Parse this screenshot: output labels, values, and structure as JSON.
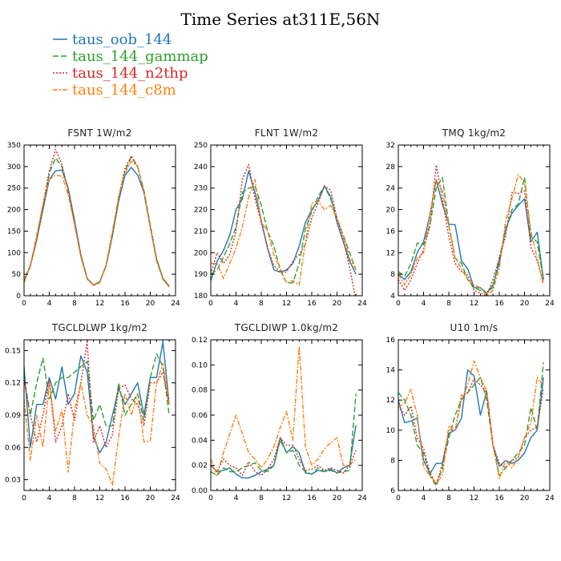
{
  "figure": {
    "title": "Time Series at311E,56N"
  },
  "legend": [
    {
      "name": "taus_oob_144",
      "color": "#1f77b4",
      "dash": ""
    },
    {
      "name": "taus_144_gammap",
      "color": "#2ca02c",
      "dash": "7,3"
    },
    {
      "name": "taus_144_n2thp",
      "color": "#d62728",
      "dash": "2,2"
    },
    {
      "name": "taus_144_c8m",
      "color": "#ff7f0e",
      "dash": "6,2,2,2"
    }
  ],
  "chart_data": [
    {
      "type": "line",
      "title": "FSNT   1W/m2",
      "xlim": [
        0,
        24
      ],
      "ylim": [
        0,
        350
      ],
      "xticks": [
        0,
        4,
        8,
        12,
        16,
        20,
        24
      ],
      "yticks": [
        0,
        50,
        100,
        150,
        200,
        250,
        300,
        350
      ],
      "ytick_labels": [
        "0",
        "50",
        "100",
        "150",
        "200",
        "250",
        "300",
        "350"
      ],
      "x": [
        0,
        1,
        2,
        3,
        4,
        5,
        6,
        7,
        8,
        9,
        10,
        11,
        12,
        13,
        14,
        15,
        16,
        17,
        18,
        19,
        20,
        21,
        22,
        23
      ],
      "series": [
        {
          "name": "taus_oob_144",
          "values": [
            35,
            70,
            130,
            200,
            270,
            290,
            292,
            250,
            175,
            95,
            40,
            25,
            32,
            70,
            140,
            220,
            280,
            298,
            280,
            240,
            160,
            85,
            40,
            22
          ]
        },
        {
          "name": "taus_144_gammap",
          "values": [
            35,
            70,
            130,
            205,
            285,
            320,
            300,
            245,
            170,
            93,
            40,
            25,
            32,
            70,
            140,
            225,
            290,
            322,
            300,
            245,
            165,
            85,
            40,
            22
          ]
        },
        {
          "name": "taus_144_n2thp",
          "values": [
            35,
            68,
            132,
            210,
            290,
            340,
            305,
            245,
            168,
            92,
            39,
            24,
            32,
            70,
            142,
            230,
            295,
            325,
            300,
            240,
            160,
            82,
            38,
            20
          ]
        },
        {
          "name": "taus_144_c8m",
          "values": [
            30,
            70,
            140,
            212,
            270,
            280,
            278,
            235,
            165,
            90,
            39,
            24,
            30,
            72,
            150,
            232,
            285,
            312,
            300,
            242,
            160,
            80,
            38,
            20
          ]
        }
      ]
    },
    {
      "type": "line",
      "title": "FLNT   1W/m2",
      "xlim": [
        0,
        24
      ],
      "ylim": [
        180,
        250
      ],
      "xticks": [
        0,
        4,
        8,
        12,
        16,
        20,
        24
      ],
      "yticks": [
        180,
        190,
        200,
        210,
        220,
        230,
        240,
        250
      ],
      "ytick_labels": [
        "180",
        "190",
        "200",
        "210",
        "220",
        "230",
        "240",
        "250"
      ],
      "x": [
        0,
        1,
        2,
        3,
        4,
        5,
        6,
        7,
        8,
        9,
        10,
        11,
        12,
        13,
        14,
        15,
        16,
        17,
        18,
        19,
        20,
        21,
        22,
        23
      ],
      "series": [
        {
          "name": "taus_oob_144",
          "values": [
            187,
            196,
            201,
            208,
            220,
            225,
            238,
            228,
            215,
            202,
            192,
            191,
            192,
            195,
            203,
            214,
            220,
            224,
            231,
            226,
            214,
            205,
            196,
            190
          ]
        },
        {
          "name": "taus_144_gammap",
          "values": [
            190,
            192,
            198,
            204,
            212,
            228,
            230,
            231,
            222,
            210,
            203,
            192,
            186,
            186,
            195,
            211,
            219,
            226,
            231,
            225,
            216,
            208,
            200,
            192
          ]
        },
        {
          "name": "taus_144_n2thp",
          "values": [
            190,
            200,
            195,
            199,
            210,
            234,
            241,
            225,
            214,
            202,
            194,
            191,
            191,
            196,
            199,
            204,
            216,
            223,
            231,
            229,
            216,
            206,
            193,
            178
          ]
        },
        {
          "name": "taus_144_c8m",
          "values": [
            195,
            195,
            188,
            195,
            202,
            212,
            226,
            234,
            214,
            210,
            199,
            193,
            186,
            187,
            185,
            205,
            223,
            224,
            220,
            222,
            216,
            208,
            197,
            192
          ]
        }
      ]
    },
    {
      "type": "line",
      "title": "TMQ   1kg/m2",
      "xlim": [
        0,
        24
      ],
      "ylim": [
        4,
        32
      ],
      "xticks": [
        0,
        4,
        8,
        12,
        16,
        20,
        24
      ],
      "yticks": [
        4,
        8,
        12,
        16,
        20,
        24,
        28,
        32
      ],
      "ytick_labels": [
        "4",
        "8",
        "12",
        "16",
        "20",
        "24",
        "28",
        "32"
      ],
      "x": [
        0,
        1,
        2,
        3,
        4,
        5,
        6,
        7,
        8,
        9,
        10,
        11,
        12,
        13,
        14,
        15,
        16,
        17,
        18,
        19,
        20,
        21,
        22,
        23
      ],
      "series": [
        {
          "name": "taus_oob_144",
          "values": [
            8,
            7,
            8.5,
            12,
            14,
            19,
            25.5,
            21,
            17.3,
            17.2,
            10.5,
            9,
            5.5,
            5.5,
            4.5,
            6,
            10,
            16.5,
            19.3,
            20.8,
            22,
            14,
            15.8,
            7
          ]
        },
        {
          "name": "taus_144_gammap",
          "values": [
            8.5,
            7.6,
            10,
            13.8,
            13.5,
            17,
            24,
            26,
            17.2,
            11,
            10,
            7,
            5.5,
            5,
            4.5,
            5.5,
            11,
            16,
            20,
            21,
            26,
            15,
            14,
            7
          ]
        },
        {
          "name": "taus_144_n2thp",
          "values": [
            7,
            5,
            7,
            10,
            12.5,
            17,
            28.3,
            22,
            15,
            10,
            8.5,
            7.8,
            5,
            4.5,
            4,
            7,
            11,
            15,
            23.2,
            23,
            23.5,
            13,
            10.5,
            6.5
          ]
        },
        {
          "name": "taus_144_c8m",
          "values": [
            8,
            6,
            8,
            11,
            12,
            19,
            25.5,
            23.5,
            17,
            11,
            9,
            7,
            6,
            5.5,
            4,
            5,
            9,
            18,
            22,
            26.5,
            25,
            16,
            11,
            6
          ]
        }
      ]
    },
    {
      "type": "line",
      "title": "TGCLDLWP   1kg/m2",
      "xlim": [
        0,
        24
      ],
      "ylim": [
        0.02,
        0.16
      ],
      "xticks": [
        0,
        4,
        8,
        12,
        16,
        20,
        24
      ],
      "yticks": [
        0.03,
        0.06,
        0.09,
        0.12,
        0.15
      ],
      "ytick_labels": [
        "0.03",
        "0.06",
        "0.09",
        "0.12",
        "0.15"
      ],
      "x": [
        0,
        1,
        2,
        3,
        4,
        5,
        6,
        7,
        8,
        9,
        10,
        11,
        12,
        13,
        14,
        15,
        16,
        17,
        18,
        19,
        20,
        21,
        22,
        23
      ],
      "series": [
        {
          "name": "taus_oob_144",
          "values": [
            0.135,
            0.06,
            0.1,
            0.1,
            0.125,
            0.105,
            0.135,
            0.1,
            0.11,
            0.145,
            0.13,
            0.07,
            0.055,
            0.065,
            0.09,
            0.115,
            0.1,
            0.11,
            0.12,
            0.09,
            0.125,
            0.125,
            0.158,
            0.1
          ]
        },
        {
          "name": "taus_144_gammap",
          "values": [
            0.125,
            0.09,
            0.12,
            0.143,
            0.105,
            0.12,
            0.125,
            0.125,
            0.13,
            0.135,
            0.14,
            0.085,
            0.1,
            0.08,
            0.08,
            0.12,
            0.09,
            0.1,
            0.11,
            0.085,
            0.125,
            0.147,
            0.135,
            0.09
          ]
        },
        {
          "name": "taus_144_n2thp",
          "values": [
            0.122,
            0.09,
            0.065,
            0.09,
            0.123,
            0.065,
            0.08,
            0.11,
            0.085,
            0.12,
            0.158,
            0.065,
            0.08,
            0.06,
            0.072,
            0.115,
            0.118,
            0.105,
            0.1,
            0.08,
            0.12,
            0.12,
            0.13,
            0.1
          ]
        },
        {
          "name": "taus_144_c8m",
          "values": [
            0.105,
            0.048,
            0.09,
            0.06,
            0.12,
            0.075,
            0.095,
            0.037,
            0.095,
            0.12,
            0.09,
            0.08,
            0.045,
            0.04,
            0.025,
            0.07,
            0.11,
            0.09,
            0.11,
            0.065,
            0.066,
            0.12,
            0.138,
            0.1
          ]
        }
      ]
    },
    {
      "type": "line",
      "title": "TGCLDIWP   1.0kg/m2",
      "xlim": [
        0,
        24
      ],
      "ylim": [
        0,
        0.12
      ],
      "xticks": [
        0,
        4,
        8,
        12,
        16,
        20,
        24
      ],
      "yticks": [
        0,
        0.02,
        0.04,
        0.06,
        0.08,
        0.1,
        0.12
      ],
      "ytick_labels": [
        "0.00",
        "0.02",
        "0.04",
        "0.06",
        "0.08",
        "0.10",
        "0.12"
      ],
      "x": [
        0,
        1,
        2,
        3,
        4,
        5,
        6,
        7,
        8,
        9,
        10,
        11,
        12,
        13,
        14,
        15,
        16,
        17,
        18,
        19,
        20,
        21,
        22,
        23
      ],
      "series": [
        {
          "name": "taus_oob_144",
          "values": [
            0.02,
            0.015,
            0.016,
            0.018,
            0.013,
            0.01,
            0.01,
            0.012,
            0.015,
            0.017,
            0.02,
            0.042,
            0.03,
            0.035,
            0.03,
            0.014,
            0.013,
            0.016,
            0.015,
            0.017,
            0.014,
            0.018,
            0.02,
            0.052
          ]
        },
        {
          "name": "taus_144_gammap",
          "values": [
            0.015,
            0.012,
            0.018,
            0.015,
            0.015,
            0.018,
            0.02,
            0.022,
            0.016,
            0.015,
            0.02,
            0.04,
            0.03,
            0.032,
            0.02,
            0.015,
            0.013,
            0.018,
            0.015,
            0.016,
            0.014,
            0.015,
            0.016,
            0.077
          ]
        },
        {
          "name": "taus_144_n2thp",
          "values": [
            0.02,
            0.015,
            0.025,
            0.02,
            0.018,
            0.012,
            0.023,
            0.015,
            0.012,
            0.017,
            0.025,
            0.042,
            0.036,
            0.036,
            0.025,
            0.016,
            0.017,
            0.02,
            0.016,
            0.018,
            0.016,
            0.014,
            0.02,
            0.032
          ]
        },
        {
          "name": "taus_144_c8m",
          "values": [
            0.025,
            0.012,
            0.03,
            0.045,
            0.06,
            0.045,
            0.03,
            0.025,
            0.018,
            0.025,
            0.035,
            0.05,
            0.063,
            0.04,
            0.115,
            0.035,
            0.02,
            0.025,
            0.033,
            0.038,
            0.042,
            0.02,
            0.02,
            0.025
          ]
        }
      ]
    },
    {
      "type": "line",
      "title": "U10   1m/s",
      "xlim": [
        0,
        24
      ],
      "ylim": [
        6,
        16
      ],
      "xticks": [
        0,
        4,
        8,
        12,
        16,
        20,
        24
      ],
      "yticks": [
        6,
        8,
        10,
        12,
        14,
        16
      ],
      "ytick_labels": [
        "6",
        "8",
        "10",
        "12",
        "14",
        "16"
      ],
      "x": [
        0,
        1,
        2,
        3,
        4,
        5,
        6,
        7,
        8,
        9,
        10,
        11,
        12,
        13,
        14,
        15,
        16,
        17,
        18,
        19,
        20,
        21,
        22,
        23
      ],
      "series": [
        {
          "name": "taus_oob_144",
          "values": [
            12,
            10.5,
            10.6,
            10.8,
            8,
            7.1,
            7.8,
            7.8,
            9.8,
            10,
            10.8,
            14,
            13.6,
            11,
            12.6,
            9,
            7.6,
            8,
            7.8,
            8,
            8.5,
            9.5,
            10,
            13.5
          ]
        },
        {
          "name": "taus_144_gammap",
          "values": [
            12.5,
            12,
            11,
            9,
            8.5,
            7,
            6.3,
            7.5,
            9.5,
            11,
            12,
            12.5,
            13,
            13.5,
            12,
            9,
            7,
            7.5,
            8,
            8.5,
            9,
            11.5,
            10,
            14.5
          ]
        },
        {
          "name": "taus_144_n2thp",
          "values": [
            11.6,
            11,
            11.6,
            9.5,
            8.8,
            7.2,
            6.4,
            7.8,
            10,
            10,
            12.3,
            12.5,
            13.4,
            13,
            12.5,
            9,
            7.8,
            7.5,
            8,
            8.2,
            9.5,
            10,
            10.2,
            12.8
          ]
        },
        {
          "name": "taus_144_c8m",
          "values": [
            11.5,
            11.8,
            12.7,
            11,
            7.5,
            7,
            6.5,
            7,
            10.3,
            10,
            12,
            13,
            14.6,
            13.5,
            12.6,
            9,
            6.8,
            8,
            7.5,
            8.2,
            9.5,
            10.5,
            13.5,
            13
          ]
        }
      ]
    }
  ]
}
